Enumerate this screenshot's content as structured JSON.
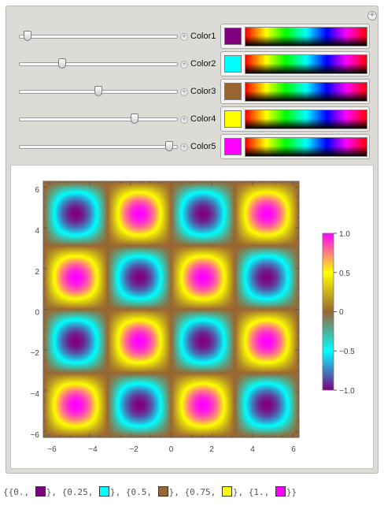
{
  "controls": [
    {
      "label": "Color1",
      "slider": 0.03,
      "color": "#7f007f"
    },
    {
      "label": "Color2",
      "slider": 0.26,
      "color": "#00ffff"
    },
    {
      "label": "Color3",
      "slider": 0.5,
      "color": "#996633"
    },
    {
      "label": "Color4",
      "slider": 0.74,
      "color": "#ffff00"
    },
    {
      "label": "Color5",
      "slider": 0.97,
      "color": "#ff00ff"
    }
  ],
  "plot": {
    "function": "sin(x) sin(y)",
    "x_ticks": [
      "−6",
      "−4",
      "−2",
      "0",
      "2",
      "4",
      "6"
    ],
    "y_ticks": [
      "6",
      "4",
      "2",
      "0",
      "−2",
      "−4",
      "−6"
    ],
    "legend_ticks": [
      "1.0",
      "0.5",
      "0",
      "−0.5",
      "−1.0"
    ]
  },
  "output": {
    "entries": [
      {
        "pos": "0.",
        "color": "#7f007f"
      },
      {
        "pos": "0.25",
        "color": "#00ffff"
      },
      {
        "pos": "0.5",
        "color": "#996633"
      },
      {
        "pos": "0.75",
        "color": "#ffff00"
      },
      {
        "pos": "1.",
        "color": "#ff00ff"
      }
    ]
  }
}
